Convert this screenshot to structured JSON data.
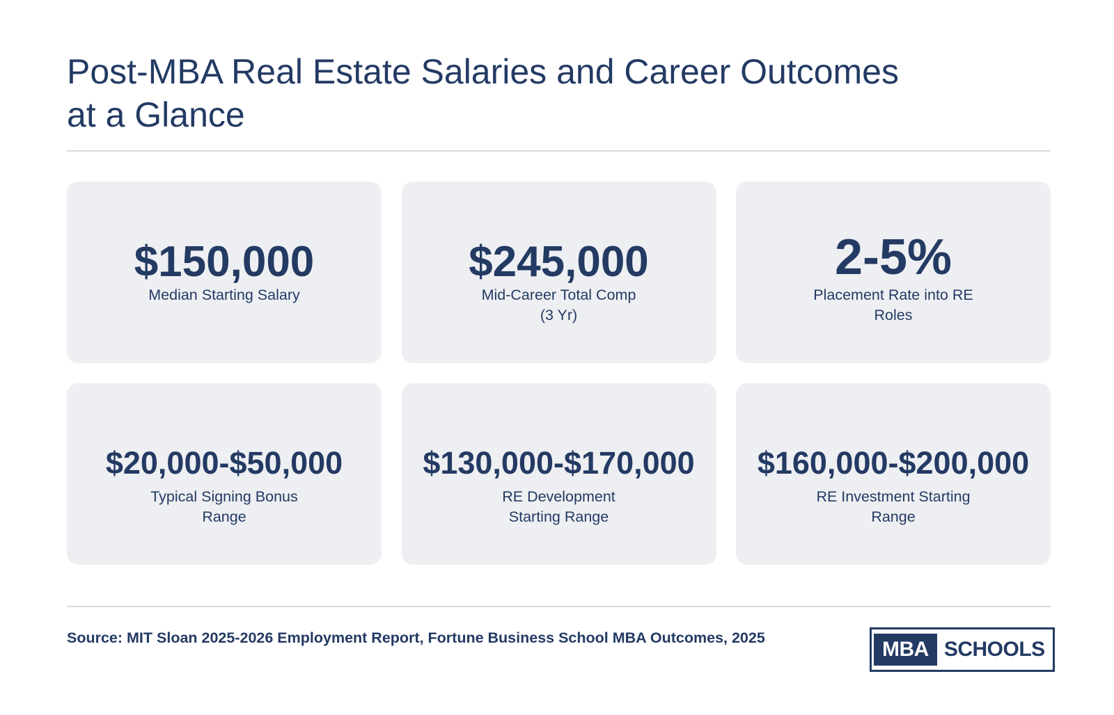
{
  "header": {
    "title_line1": "Post-MBA Real Estate Salaries and Career Outcomes",
    "title_line2": "at a Glance"
  },
  "stats": [
    {
      "value": "$150,000",
      "label_line1": "Median Starting Salary",
      "label_line2": ""
    },
    {
      "value": "$245,000",
      "label_line1": "Mid-Career Total Comp",
      "label_line2": "(3 Yr)"
    },
    {
      "value": "2-5%",
      "label_line1": "Placement Rate into RE",
      "label_line2": "Roles"
    },
    {
      "value": "$20,000-$50,000",
      "label_line1": "Typical Signing Bonus",
      "label_line2": "Range"
    },
    {
      "value": "$130,000-$170,000",
      "label_line1": "RE Development",
      "label_line2": "Starting Range"
    },
    {
      "value": "$160,000-$200,000",
      "label_line1": "RE Investment Starting",
      "label_line2": "Range"
    }
  ],
  "footer": {
    "source": "Source: MIT Sloan 2025-2026 Employment Report, Fortune Business School MBA Outcomes, 2025",
    "logo_part1": "MBA",
    "logo_part2": "SCHOOLS"
  },
  "colors": {
    "primary": "#233a63",
    "card_background": "#eeeff2",
    "divider": "#d7d9de"
  }
}
